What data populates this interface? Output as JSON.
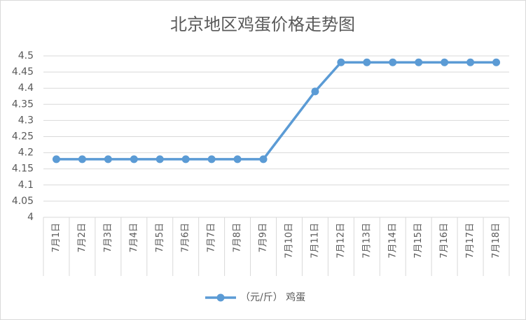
{
  "chart_data": {
    "type": "line",
    "title": "北京地区鸡蛋价格走势图",
    "categories": [
      "7月1日",
      "7月2日",
      "7月3日",
      "7月4日",
      "7月5日",
      "7月6日",
      "7月7日",
      "7月8日",
      "7月9日",
      "7月10日",
      "7月11日",
      "7月12日",
      "7月13日",
      "7月14日",
      "7月15日",
      "7月16日",
      "7月17日",
      "7月18日"
    ],
    "series": [
      {
        "name": "（元/斤） 鸡蛋",
        "color": "#5b9bd5",
        "values": [
          4.18,
          4.18,
          4.18,
          4.18,
          4.18,
          4.18,
          4.18,
          4.18,
          4.18,
          null,
          4.39,
          4.48,
          4.48,
          4.48,
          4.48,
          4.48,
          4.48,
          4.48
        ]
      }
    ],
    "ylim": [
      4,
      4.5
    ],
    "yticks": [
      4,
      4.05,
      4.1,
      4.15,
      4.2,
      4.25,
      4.3,
      4.35,
      4.4,
      4.45,
      4.5
    ],
    "grid": true,
    "legend": "bottom"
  }
}
